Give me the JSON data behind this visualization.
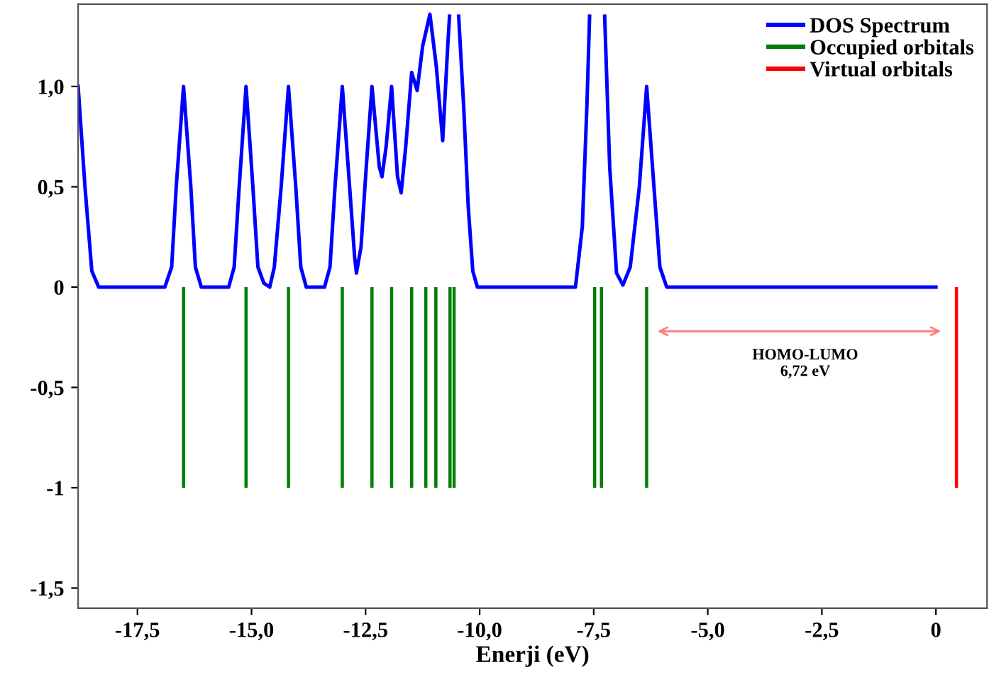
{
  "chart_data": {
    "type": "line",
    "xlabel": "Enerji (eV)",
    "annotations": [
      "HOMO-LUMO\n6,72 eV"
    ],
    "series": [
      {
        "name": "DOS Spectrum",
        "color": "#0000ff",
        "x": [
          -18.8,
          -18.65,
          -18.5,
          -18.35,
          -16.9,
          -16.75,
          -16.65,
          -16.49,
          -16.33,
          -16.23,
          -16.1,
          -15.5,
          -15.38,
          -15.27,
          -15.12,
          -14.97,
          -14.86,
          -14.73,
          -14.6,
          -14.5,
          -14.35,
          -14.19,
          -14.03,
          -13.92,
          -13.8,
          -13.4,
          -13.28,
          -13.17,
          -13.01,
          -12.85,
          -12.74,
          -12.7,
          -12.6,
          -12.5,
          -12.36,
          -12.2,
          -12.14,
          -12.05,
          -11.93,
          -11.8,
          -11.72,
          -11.62,
          -11.49,
          -11.37,
          -11.25,
          -11.09,
          -10.95,
          -10.81,
          -10.7,
          -10.66,
          -10.55,
          -10.46,
          -10.35,
          -10.25,
          -10.15,
          -10.05,
          -7.9,
          -7.75,
          -7.65,
          -7.59,
          -7.42,
          -7.26,
          -7.15,
          -7.0,
          -6.86,
          -6.7,
          -6.5,
          -6.34,
          -6.18,
          -6.05,
          -5.9,
          0.0
        ],
        "values": [
          1.0,
          0.5,
          0.08,
          0.0,
          0.0,
          0.1,
          0.5,
          1.0,
          0.5,
          0.1,
          0.0,
          0.0,
          0.1,
          0.5,
          1.0,
          0.5,
          0.1,
          0.02,
          0.0,
          0.1,
          0.5,
          1.0,
          0.5,
          0.1,
          0.0,
          0.0,
          0.1,
          0.5,
          1.0,
          0.5,
          0.15,
          0.07,
          0.2,
          0.55,
          1.0,
          0.6,
          0.55,
          0.7,
          1.0,
          0.55,
          0.47,
          0.7,
          1.07,
          0.98,
          1.2,
          1.36,
          1.1,
          0.73,
          1.2,
          1.35,
          null,
          1.35,
          0.9,
          0.4,
          0.08,
          0.0,
          0.0,
          0.3,
          0.9,
          1.35,
          null,
          1.35,
          0.6,
          0.07,
          0.01,
          0.1,
          0.5,
          1.0,
          0.5,
          0.1,
          0.0,
          0.0
        ]
      },
      {
        "name": "Occupied orbitals",
        "type": "bar",
        "color": "#008000",
        "x": [
          -16.49,
          -15.12,
          -14.19,
          -13.01,
          -12.36,
          -11.93,
          -11.49,
          -11.18,
          -10.96,
          -10.65,
          -10.56,
          -7.48,
          -7.33,
          -6.34
        ],
        "values": [
          -1,
          -1,
          -1,
          -1,
          -1,
          -1,
          -1,
          -1,
          -1,
          -1,
          -1,
          -1,
          -1,
          -1
        ]
      },
      {
        "name": "Virtual orbitals",
        "type": "bar",
        "color": "#ff0000",
        "x": [
          0.45
        ],
        "values": [
          -1
        ]
      }
    ],
    "xlim": [
      -18.8,
      1.12
    ],
    "ylim": [
      -1.6,
      1.41
    ],
    "xticks": [
      {
        "value": -17.5,
        "label": "-17,5"
      },
      {
        "value": -15,
        "label": "-15,0"
      },
      {
        "value": -12.5,
        "label": "-12,5"
      },
      {
        "value": -10,
        "label": "-10,0"
      },
      {
        "value": -7.5,
        "label": "-7,5"
      },
      {
        "value": -5,
        "label": "-5,0"
      },
      {
        "value": -2.5,
        "label": "-2,5"
      },
      0
    ],
    "yticks": [
      {
        "value": -1.5,
        "label": "-1,5"
      },
      -1,
      {
        "value": -0.5,
        "label": "-0,5"
      },
      0,
      {
        "value": 0.5,
        "label": "0,5"
      },
      {
        "value": 1,
        "label": "1,0"
      }
    ],
    "grid": false,
    "legend": "top right",
    "marker": "none",
    "line_style": "solid"
  }
}
